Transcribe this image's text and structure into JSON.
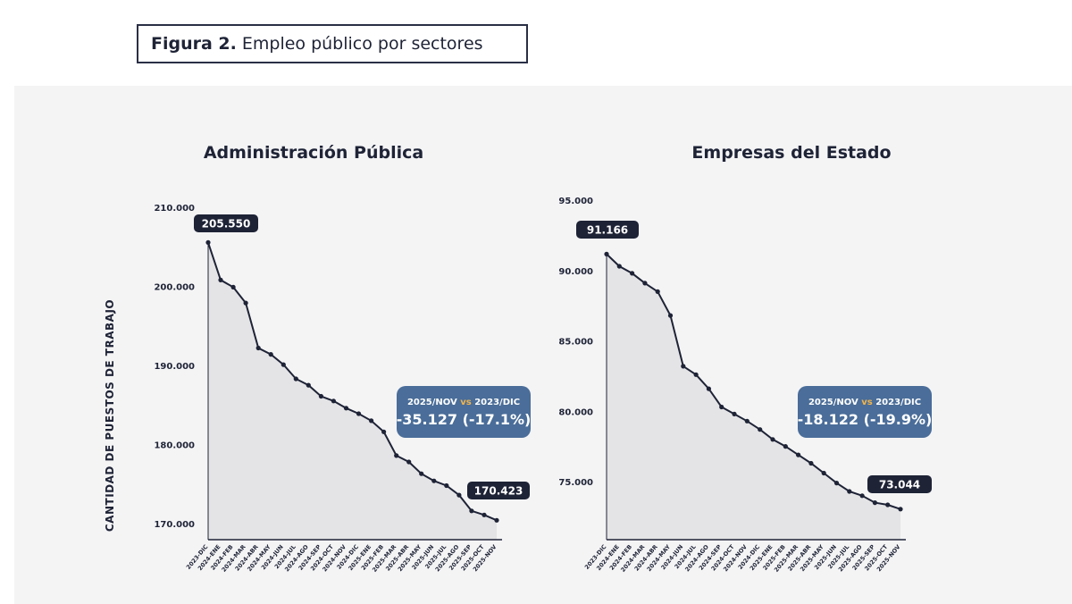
{
  "figure": {
    "label": "Figura 2.",
    "title": "Empleo público por sectores"
  },
  "ylabel": "CANTIDAD DE PUESTOS DE TRABAJO",
  "chart_data": [
    {
      "type": "area",
      "title": "Administración Pública",
      "xlabel": "",
      "ylabel": "CANTIDAD DE PUESTOS DE TRABAJO",
      "ylim": [
        168000,
        210000
      ],
      "yticks": [
        170000,
        180000,
        190000,
        200000,
        210000
      ],
      "ytick_labels": [
        "170.000",
        "180.000",
        "190.000",
        "200.000",
        "210.000"
      ],
      "categories": [
        "2023-DIC",
        "2024-ENE",
        "2024-FEB",
        "2024-MAR",
        "2024-ABR",
        "2024-MAY",
        "2024-JUN",
        "2024-JUL",
        "2024-AGO",
        "2024-SEP",
        "2024-OCT",
        "2024-NOV",
        "2024-DIC",
        "2025-ENE",
        "2025-FEB",
        "2025-MAR",
        "2025-ABR",
        "2025-MAY",
        "2025-JUN",
        "2025-JUL",
        "2025-AGO",
        "2025-SEP",
        "2025-OCT",
        "2025-NOV"
      ],
      "values": [
        205550,
        200800,
        199900,
        197900,
        192200,
        191400,
        190100,
        188300,
        187500,
        186100,
        185500,
        184600,
        183900,
        183000,
        181600,
        178600,
        177800,
        176300,
        175400,
        174800,
        173600,
        171600,
        171100,
        170423
      ],
      "start_label": "205.550",
      "end_label": "170.423",
      "comparison": {
        "period_a": "2025/NOV",
        "vs": "vs",
        "period_b": "2023/DIC",
        "delta": "-35.127 (-17.1%)"
      },
      "colors": {
        "line": "#1e2336",
        "fill": "#e4e4e6",
        "tag": "#1e2336",
        "callout": "#4a6d99",
        "vs": "#f0b44c"
      }
    },
    {
      "type": "area",
      "title": "Empresas del Estado",
      "xlabel": "",
      "ylabel": "",
      "ylim": [
        71000,
        95000
      ],
      "yticks": [
        75000,
        80000,
        85000,
        90000,
        95000
      ],
      "ytick_labels": [
        "75.000",
        "80.000",
        "85.000",
        "90.000",
        "95.000"
      ],
      "categories": [
        "2023-DIC",
        "2024-ENE",
        "2024-FEB",
        "2024-MAR",
        "2024-ABR",
        "2024-MAY",
        "2024-JUN",
        "2024-JUL",
        "2024-AGO",
        "2024-SEP",
        "2024-OCT",
        "2024-NOV",
        "2024-DIC",
        "2025-ENE",
        "2025-FEB",
        "2025-MAR",
        "2025-ABR",
        "2025-MAY",
        "2025-JUN",
        "2025-JUL",
        "2025-AGO",
        "2025-SEP",
        "2025-OCT",
        "2025-NOV"
      ],
      "values": [
        91166,
        90300,
        89800,
        89100,
        88500,
        86800,
        83200,
        82600,
        81600,
        80300,
        79800,
        79300,
        78700,
        78000,
        77500,
        76900,
        76300,
        75600,
        74900,
        74300,
        74000,
        73500,
        73350,
        73044
      ],
      "start_label": "91.166",
      "end_label": "73.044",
      "comparison": {
        "period_a": "2025/NOV",
        "vs": "vs",
        "period_b": "2023/DIC",
        "delta": "-18.122 (-19.9%)"
      },
      "colors": {
        "line": "#1e2336",
        "fill": "#e4e4e6",
        "tag": "#1e2336",
        "callout": "#4a6d99",
        "vs": "#f0b44c"
      }
    }
  ]
}
